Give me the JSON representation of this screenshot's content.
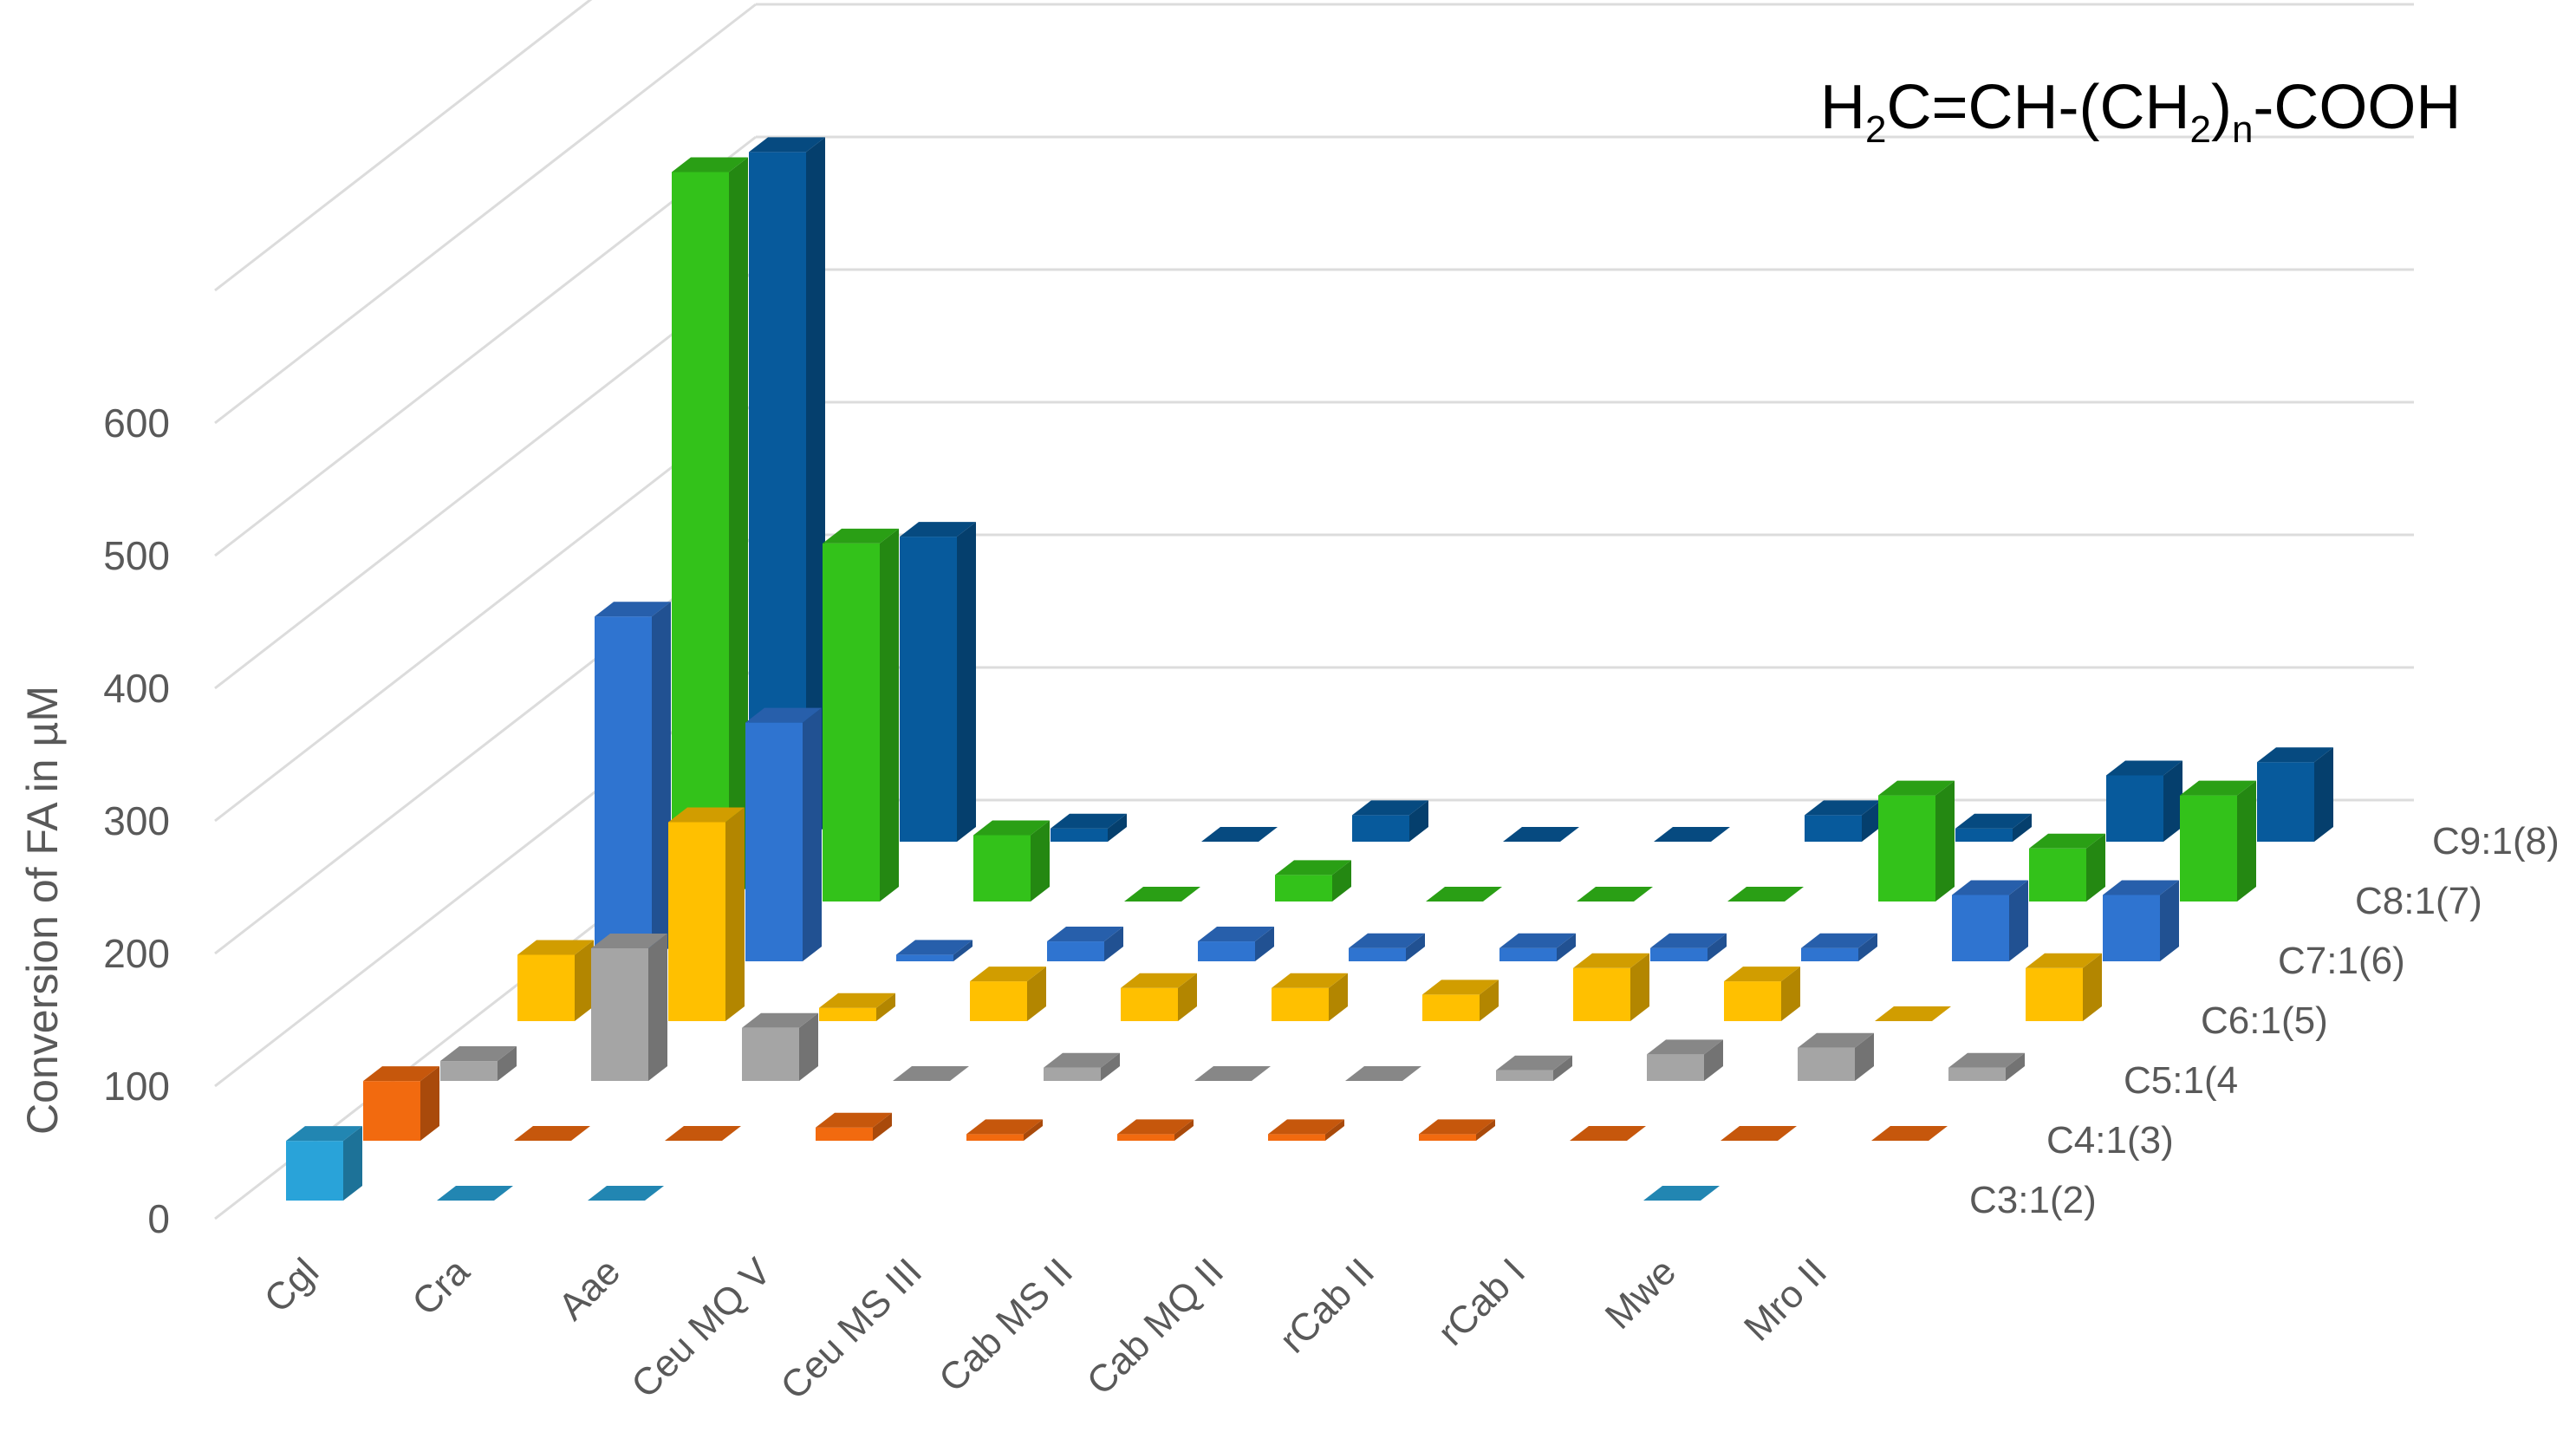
{
  "chart_data": {
    "type": "bar3d",
    "title": "",
    "formula": {
      "prefix": "H",
      "sub1": "2",
      "middle": "C=CH-(CH",
      "sub2": "2",
      "close": ")",
      "sub3": "n",
      "suffix": "-COOH"
    },
    "ylabel": "Conversion of FA in µM",
    "ylim": [
      0,
      700
    ],
    "yticks": [
      0,
      100,
      200,
      300,
      400,
      500,
      600
    ],
    "categories": [
      "Cgl",
      "Cra",
      "Aae",
      "Ceu MQ V",
      "Ceu MS III",
      "Cab MS II",
      "Cab MQ II",
      "rCab II",
      "rCab I",
      "Mwe",
      "Mro II"
    ],
    "series": [
      {
        "name": "C3:1(2)",
        "color": "#29a3d9",
        "values": [
          45,
          0,
          0,
          null,
          null,
          null,
          null,
          null,
          null,
          0,
          null
        ]
      },
      {
        "name": "C4:1(3)",
        "color": "#f26a0f",
        "values": [
          45,
          0,
          0,
          10,
          5,
          5,
          5,
          5,
          0,
          0,
          0
        ]
      },
      {
        "name": "C5:1(4",
        "color": "#a5a5a5",
        "values": [
          15,
          100,
          40,
          0,
          10,
          0,
          0,
          8,
          20,
          25,
          10
        ]
      },
      {
        "name": "C6:1(5)",
        "color": "#ffc000",
        "values": [
          50,
          150,
          10,
          30,
          25,
          25,
          20,
          40,
          30,
          0,
          40
        ]
      },
      {
        "name": "C7:1(6)",
        "color": "#2f74d0",
        "values": [
          260,
          180,
          5,
          15,
          15,
          10,
          10,
          10,
          10,
          50,
          50
        ]
      },
      {
        "name": "C8:1(7)",
        "color": "#33c21a",
        "values": [
          550,
          270,
          50,
          0,
          20,
          0,
          0,
          0,
          80,
          40,
          80
        ]
      },
      {
        "name": "C9:1(8)",
        "color": "#075a9c",
        "values": [
          520,
          230,
          10,
          0,
          20,
          0,
          0,
          20,
          10,
          50,
          60
        ]
      }
    ]
  }
}
